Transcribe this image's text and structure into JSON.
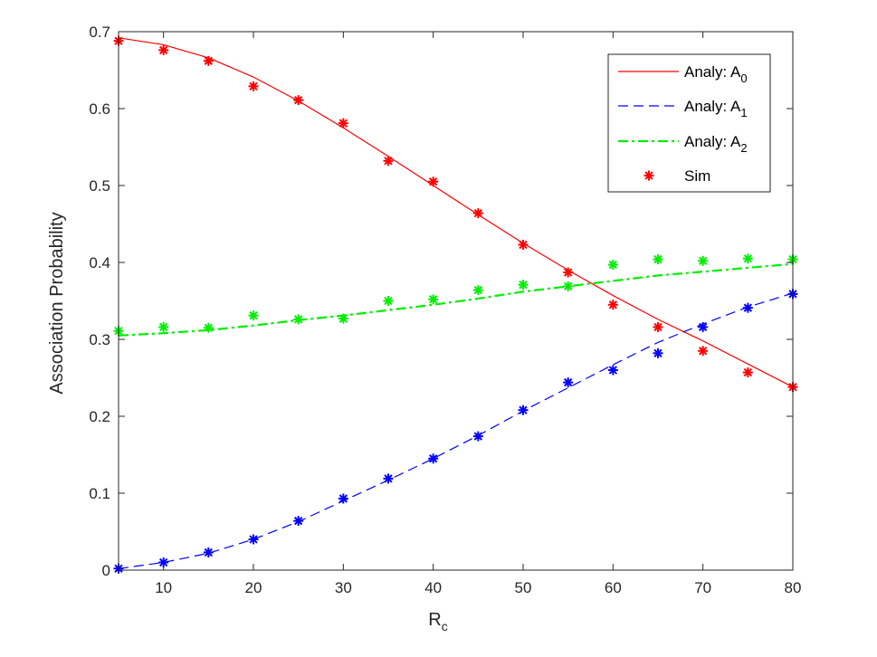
{
  "chart_data": {
    "type": "line",
    "xlabel": "R",
    "xlabel_sub": "c",
    "ylabel": "Association Probability",
    "xlim": [
      5,
      80
    ],
    "ylim": [
      0,
      0.7
    ],
    "xticks": [
      10,
      20,
      30,
      40,
      50,
      60,
      70,
      80
    ],
    "yticks": [
      0,
      0.1,
      0.2,
      0.3,
      0.4,
      0.5,
      0.6,
      0.7
    ],
    "grid": false,
    "legend_position": "top-right",
    "x": [
      5,
      10,
      15,
      20,
      25,
      30,
      35,
      40,
      45,
      50,
      55,
      60,
      65,
      70,
      75,
      80
    ],
    "series": [
      {
        "name": "Analy: A",
        "name_sub": "0",
        "style": "solid",
        "color": "#ff0000",
        "values": [
          0.692,
          0.683,
          0.666,
          0.641,
          0.61,
          0.575,
          0.538,
          0.5,
          0.462,
          0.425,
          0.39,
          0.357,
          0.326,
          0.298,
          0.268,
          0.238
        ]
      },
      {
        "name": "Analy: A",
        "name_sub": "1",
        "style": "dashed",
        "color": "#0000ff",
        "values": [
          0.002,
          0.01,
          0.022,
          0.04,
          0.063,
          0.09,
          0.117,
          0.145,
          0.175,
          0.207,
          0.237,
          0.267,
          0.296,
          0.32,
          0.342,
          0.36
        ]
      },
      {
        "name": "Analy: A",
        "name_sub": "2",
        "style": "dashdot",
        "color": "#00ee00",
        "values": [
          0.305,
          0.308,
          0.312,
          0.318,
          0.325,
          0.331,
          0.338,
          0.345,
          0.353,
          0.362,
          0.369,
          0.376,
          0.383,
          0.388,
          0.393,
          0.398
        ]
      }
    ],
    "sim": {
      "name": "Sim",
      "legend_color": "#ff0000",
      "groups": [
        {
          "color": "#ff0000",
          "values": [
            0.688,
            0.676,
            0.662,
            0.629,
            0.611,
            0.581,
            0.532,
            0.505,
            0.464,
            0.423,
            0.387,
            0.345,
            0.316,
            0.285,
            0.257,
            0.238
          ]
        },
        {
          "color": "#0000ff",
          "values": [
            0.002,
            0.01,
            0.023,
            0.04,
            0.064,
            0.093,
            0.119,
            0.145,
            0.174,
            0.208,
            0.244,
            0.26,
            0.282,
            0.316,
            0.341,
            0.359
          ]
        },
        {
          "color": "#00ee00",
          "values": [
            0.311,
            0.316,
            0.315,
            0.331,
            0.326,
            0.327,
            0.35,
            0.352,
            0.364,
            0.371,
            0.369,
            0.397,
            0.404,
            0.402,
            0.405,
            0.404
          ]
        }
      ]
    }
  }
}
